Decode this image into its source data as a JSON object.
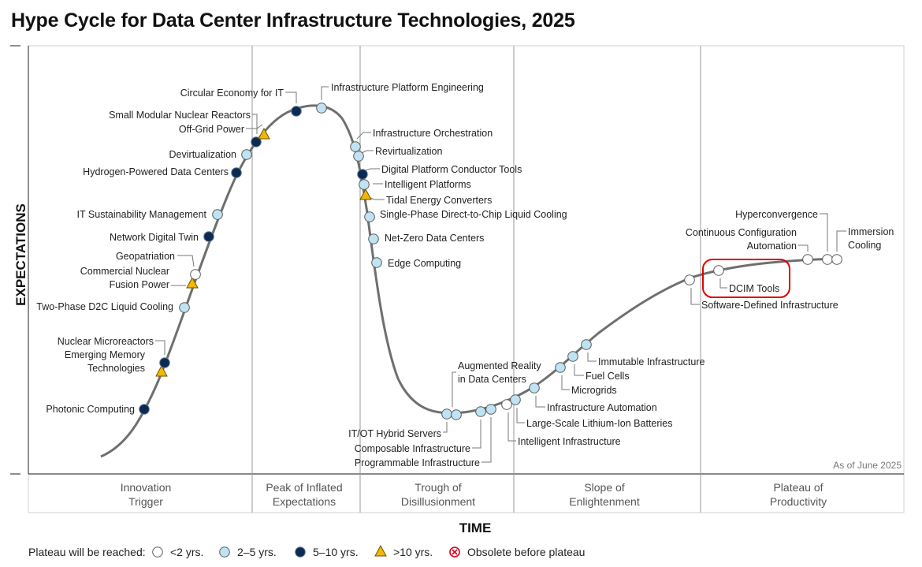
{
  "title": "Hype Cycle for Data Center Infrastructure Technologies, 2025",
  "chart_data": {
    "type": "scatter",
    "y_axis_label": "EXPECTATIONS",
    "x_axis_label": "TIME",
    "as_of": "As of June 2025",
    "grid": false,
    "phases": [
      {
        "line1": "Innovation",
        "line2": "Trigger"
      },
      {
        "line1": "Peak of Inflated",
        "line2": "Expectations"
      },
      {
        "line1": "Trough of",
        "line2": "Disillusionment"
      },
      {
        "line1": "Slope of",
        "line2": "Enlightenment"
      },
      {
        "line1": "Plateau of",
        "line2": "Productivity"
      }
    ],
    "legend": {
      "title": "Plateau will be reached:",
      "items": [
        {
          "key": "lt2",
          "label": "<2 yrs."
        },
        {
          "key": "2to5",
          "label": "2–5 yrs."
        },
        {
          "key": "5to10",
          "label": "5–10 yrs."
        },
        {
          "key": "gt10",
          "label": ">10 yrs."
        },
        {
          "key": "obsolete",
          "label": "Obsolete before plateau"
        }
      ]
    },
    "colors": {
      "lt2": "#ffffff",
      "2to5": "#bfe3f3",
      "5to10": "#0b2b55",
      "gt10": "#f2b705",
      "obsolete": "#d6001c",
      "curve": "#6e706f",
      "highlight": "#e00000"
    },
    "highlighted": "DCIM Tools",
    "technologies": [
      {
        "name": "Photonic Computing",
        "category": "5to10"
      },
      {
        "name": "Emerging Memory Technologies",
        "category": "gt10"
      },
      {
        "name": "Nuclear Microreactors",
        "category": "5to10"
      },
      {
        "name": "Two-Phase D2C Liquid Cooling",
        "category": "2to5"
      },
      {
        "name": "Commercial Nuclear Fusion Power",
        "category": "gt10"
      },
      {
        "name": "Geopatriation",
        "category": "lt2"
      },
      {
        "name": "Network Digital Twin",
        "category": "5to10"
      },
      {
        "name": "IT Sustainability Management",
        "category": "2to5"
      },
      {
        "name": "Hydrogen-Powered Data Centers",
        "category": "5to10"
      },
      {
        "name": "Devirtualization",
        "category": "2to5"
      },
      {
        "name": "Small Modular Nuclear Reactors",
        "category": "5to10"
      },
      {
        "name": "Off-Grid Power",
        "category": "gt10"
      },
      {
        "name": "Circular Economy for IT",
        "category": "5to10"
      },
      {
        "name": "Infrastructure Platform Engineering",
        "category": "2to5"
      },
      {
        "name": "Infrastructure Orchestration",
        "category": "2to5"
      },
      {
        "name": "Revirtualization",
        "category": "2to5"
      },
      {
        "name": "Digital Platform Conductor Tools",
        "category": "5to10"
      },
      {
        "name": "Intelligent Platforms",
        "category": "2to5"
      },
      {
        "name": "Tidal Energy Converters",
        "category": "gt10"
      },
      {
        "name": "Single-Phase Direct-to-Chip Liquid Cooling",
        "category": "2to5"
      },
      {
        "name": "Net-Zero Data Centers",
        "category": "2to5"
      },
      {
        "name": "Edge Computing",
        "category": "2to5"
      },
      {
        "name": "IT/OT Hybrid Servers",
        "category": "2to5"
      },
      {
        "name": "Augmented Reality in Data Centers",
        "category": "2to5"
      },
      {
        "name": "Composable Infrastructure",
        "category": "2to5"
      },
      {
        "name": "Programmable Infrastructure",
        "category": "2to5"
      },
      {
        "name": "Intelligent Infrastructure",
        "category": "lt2"
      },
      {
        "name": "Large-Scale Lithium-Ion Batteries",
        "category": "2to5"
      },
      {
        "name": "Infrastructure Automation",
        "category": "2to5"
      },
      {
        "name": "Microgrids",
        "category": "2to5"
      },
      {
        "name": "Fuel Cells",
        "category": "2to5"
      },
      {
        "name": "Immutable Infrastructure",
        "category": "2to5"
      },
      {
        "name": "Software-Defined Infrastructure",
        "category": "lt2"
      },
      {
        "name": "DCIM Tools",
        "category": "lt2"
      },
      {
        "name": "Continuous Configuration Automation",
        "category": "lt2"
      },
      {
        "name": "Hyperconvergence",
        "category": "lt2"
      },
      {
        "name": "Immersion Cooling",
        "category": "lt2"
      }
    ]
  }
}
